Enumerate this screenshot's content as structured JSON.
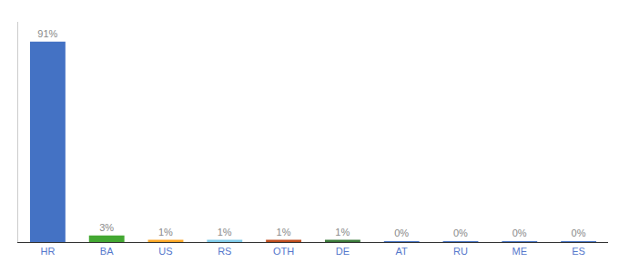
{
  "chart_data": {
    "type": "bar",
    "categories": [
      "HR",
      "BA",
      "US",
      "RS",
      "OTH",
      "DE",
      "AT",
      "RU",
      "ME",
      "ES"
    ],
    "values": [
      91,
      3,
      1,
      1,
      1,
      1,
      0.15,
      0.15,
      0.15,
      0.15
    ],
    "value_labels": [
      "91%",
      "3%",
      "1%",
      "1%",
      "1%",
      "1%",
      "0%",
      "0%",
      "0%",
      "0%"
    ],
    "colors": [
      "#4472C4",
      "#43A832",
      "#FFA726",
      "#80CBEA",
      "#BF4D1E",
      "#3A7A3A",
      "#4472C4",
      "#4472C4",
      "#4472C4",
      "#4472C4"
    ],
    "ylim": [
      0,
      100
    ],
    "yticks": [],
    "grid": false,
    "data_labels": true,
    "tick_labels": "x"
  }
}
